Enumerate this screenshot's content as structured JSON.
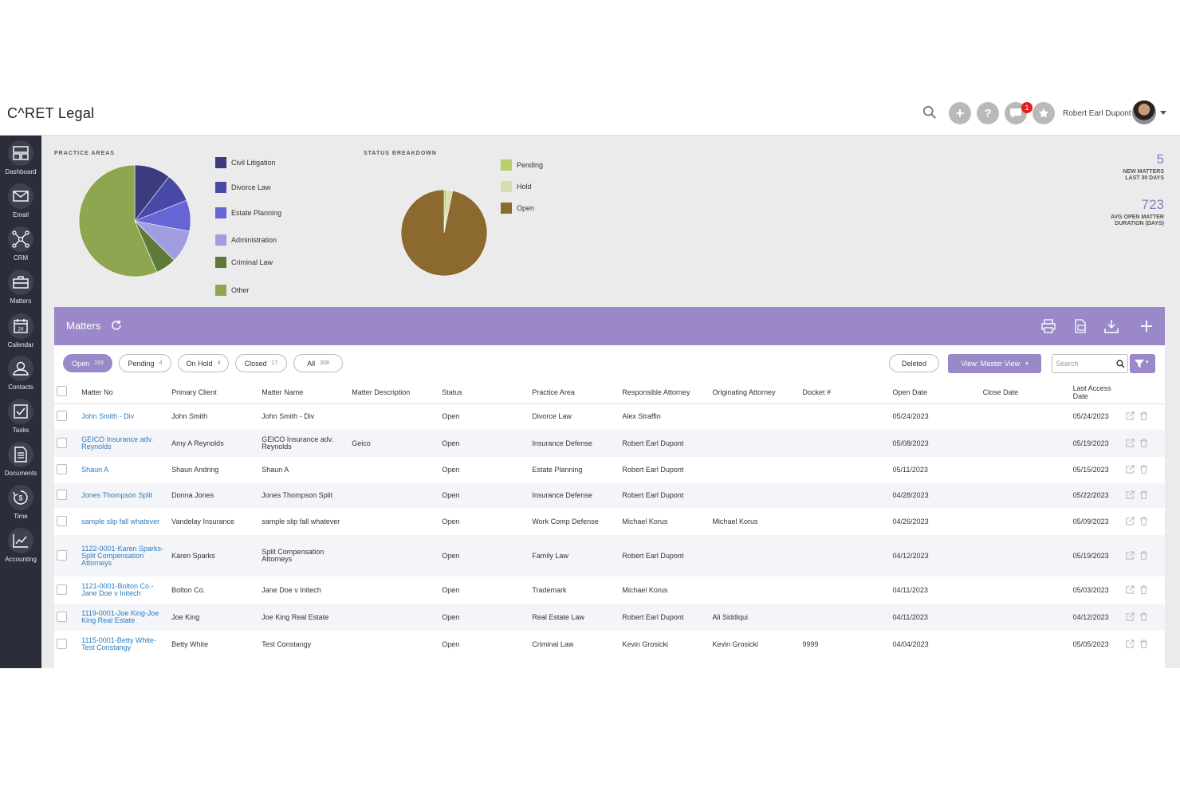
{
  "app": {
    "logo_text": "C^RET Legal",
    "user_name": "Robert Earl Dupont",
    "notification_count": "1"
  },
  "sidebar": {
    "items": [
      {
        "label": "Dashboard",
        "icon": "dashboard-icon"
      },
      {
        "label": "Email",
        "icon": "email-icon"
      },
      {
        "label": "CRM",
        "icon": "crm-icon"
      },
      {
        "label": "Matters",
        "icon": "briefcase-icon"
      },
      {
        "label": "Calendar",
        "icon": "calendar-icon"
      },
      {
        "label": "Contacts",
        "icon": "contacts-icon"
      },
      {
        "label": "Tasks",
        "icon": "tasks-icon"
      },
      {
        "label": "Documents",
        "icon": "documents-icon"
      },
      {
        "label": "Time",
        "icon": "time-icon"
      },
      {
        "label": "Accounting",
        "icon": "accounting-icon"
      }
    ]
  },
  "practice_areas": {
    "title": "PRACTICE AREAS",
    "legend": [
      {
        "label": "Civil Litigation",
        "color": "#3b3b7e"
      },
      {
        "label": "Divorce Law",
        "color": "#4848a6"
      },
      {
        "label": "Estate Planning",
        "color": "#6565d4"
      },
      {
        "label": "Administration",
        "color": "#a19de0"
      },
      {
        "label": "Criminal Law",
        "color": "#5e7a38"
      },
      {
        "label": "Other",
        "color": "#8fa650"
      }
    ]
  },
  "status_breakdown": {
    "title": "STATUS BREAKDOWN",
    "legend": [
      {
        "label": "Pending",
        "color": "#b6cf6a"
      },
      {
        "label": "Hold",
        "color": "#d8dcae"
      },
      {
        "label": "Open",
        "color": "#8c6a2f"
      }
    ]
  },
  "stats": [
    {
      "value": "5",
      "label_line1": "NEW MATTERS",
      "label_line2": "LAST 30 DAYS"
    },
    {
      "value": "723",
      "label_line1": "AVG OPEN MATTER",
      "label_line2": "DURATION (DAYS)"
    }
  ],
  "matters": {
    "title": "Matters",
    "filters": [
      {
        "label": "Open",
        "count": "283"
      },
      {
        "label": "Pending",
        "count": "4"
      },
      {
        "label": "On Hold",
        "count": "4"
      },
      {
        "label": "Closed",
        "count": "17"
      },
      {
        "label": "All",
        "count": "308"
      }
    ],
    "deleted_label": "Deleted",
    "view_label": "View: Master View",
    "search_placeholder": "Search",
    "columns": [
      "Matter No",
      "Primary Client",
      "Matter Name",
      "Matter Description",
      "Status",
      "Practice Area",
      "Responsible Attorney",
      "Originating Attorney",
      "Docket #",
      "Open Date",
      "Close Date",
      "Last Access Date"
    ],
    "rows": [
      [
        "John Smith - Div",
        "John Smith",
        "John Smith - Div",
        "",
        "Open",
        "Divorce Law",
        "Alex Straffin",
        "",
        "",
        "05/24/2023",
        "",
        "05/24/2023"
      ],
      [
        "GEICO Insurance adv. Reynolds",
        "Amy A Reynolds",
        "GEICO Insurance adv. Reynolds",
        "Geico",
        "Open",
        "Insurance Defense",
        "Robert Earl Dupont",
        "",
        "",
        "05/08/2023",
        "",
        "05/19/2023"
      ],
      [
        "Shaun A",
        "Shaun Andring",
        "Shaun A",
        "",
        "Open",
        "Estate Planning",
        "Robert Earl Dupont",
        "",
        "",
        "05/11/2023",
        "",
        "05/15/2023"
      ],
      [
        "Jones Thompson Split",
        "Donna Jones",
        "Jones Thompson Split",
        "",
        "Open",
        "Insurance Defense",
        "Robert Earl Dupont",
        "",
        "",
        "04/28/2023",
        "",
        "05/22/2023"
      ],
      [
        "sample slip fall whatever",
        "Vandelay Insurance",
        "sample slip fall whatever",
        "",
        "Open",
        "Work Comp Defense",
        "Michael Korus",
        "Michael Korus",
        "",
        "04/26/2023",
        "",
        "05/09/2023"
      ],
      [
        "1122-0001-Karen Sparks-Split Compensation Attorneys",
        "Karen Sparks",
        "Split Compensation Attorneys",
        "",
        "Open",
        "Family Law",
        "Robert Earl Dupont",
        "",
        "",
        "04/12/2023",
        "",
        "05/19/2023"
      ],
      [
        "1121-0001-Bolton Co.-Jane Doe v Initech",
        "Bolton Co.",
        "Jane Doe v Initech",
        "",
        "Open",
        "Trademark",
        "Michael Korus",
        "",
        "",
        "04/11/2023",
        "",
        "05/03/2023"
      ],
      [
        "1119-0001-Joe King-Joe King Real Estate",
        "Joe King",
        "Joe King Real Estate",
        "",
        "Open",
        "Real Estate Law",
        "Robert Earl Dupont",
        "Ali Siddiqui",
        "",
        "04/11/2023",
        "",
        "04/12/2023"
      ],
      [
        "1115-0001-Betty White-Test Constangy",
        "Betty White",
        "Test Constangy",
        "",
        "Open",
        "Criminal Law",
        "Kevin Grosicki",
        "Kevin Grosicki",
        "9999",
        "04/04/2023",
        "",
        "05/05/2023"
      ]
    ]
  }
}
